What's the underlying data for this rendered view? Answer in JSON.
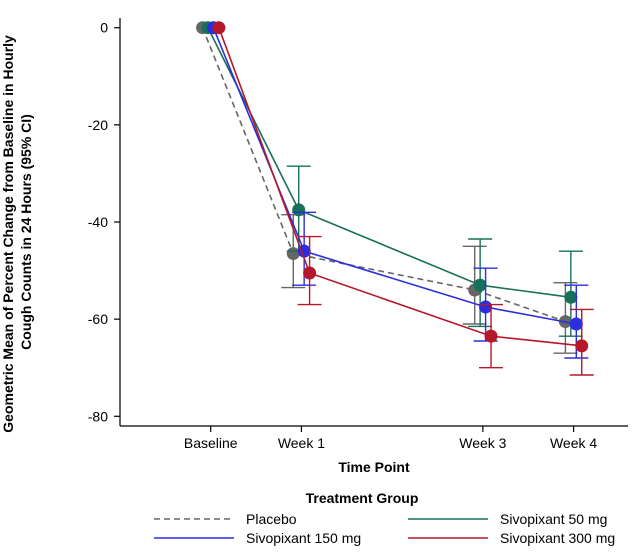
{
  "chart_data": {
    "type": "line",
    "title": "",
    "xlabel": "Time Point",
    "ylabel": "Geometric Mean of Percent Change from Baseline in Hourly Cough Counts in 24 Hours  (95% CI)",
    "ylabel_lines": [
      "Geometric Mean of Percent Change from Baseline in Hourly",
      "Cough Counts in 24 Hours  (95% CI)"
    ],
    "categories": [
      "Baseline",
      "Week 1",
      "Week 3",
      "Week 4"
    ],
    "x": [
      0,
      1,
      3,
      4
    ],
    "ylim": [
      -82,
      2
    ],
    "yticks": [
      0,
      -20,
      -40,
      -60,
      -80
    ],
    "legend_title": "Treatment Group",
    "legend_placement": "bottom",
    "grid": false,
    "series": [
      {
        "name": "Placebo",
        "color": "#666666",
        "dashed": true,
        "offset": -0.09,
        "values": [
          0,
          -46.5,
          -54,
          -60.5
        ],
        "ci_low": [
          0,
          -53.5,
          -61,
          -67
        ],
        "ci_high": [
          0,
          -38.5,
          -45,
          -52.5
        ]
      },
      {
        "name": "Sivopixant 50 mg",
        "color": "#17705a",
        "dashed": false,
        "offset": -0.03,
        "values": [
          0,
          -37.5,
          -53,
          -55.5
        ],
        "ci_low": [
          0,
          -46,
          -61.5,
          -63.5
        ],
        "ci_high": [
          0,
          -28.5,
          -43.5,
          -46
        ]
      },
      {
        "name": "Sivopixant 150 mg",
        "color": "#2d2de0",
        "dashed": false,
        "offset": 0.03,
        "values": [
          0,
          -46,
          -57.5,
          -61
        ],
        "ci_low": [
          0,
          -53,
          -64.5,
          -68
        ],
        "ci_high": [
          0,
          -38,
          -49.5,
          -53
        ]
      },
      {
        "name": "Sivopixant 300 mg",
        "color": "#b5182b",
        "dashed": false,
        "offset": 0.09,
        "values": [
          0,
          -50.5,
          -63.5,
          -65.5
        ],
        "ci_low": [
          0,
          -57,
          -70,
          -71.5
        ],
        "ci_high": [
          0,
          -43,
          -57,
          -58
        ]
      }
    ]
  }
}
